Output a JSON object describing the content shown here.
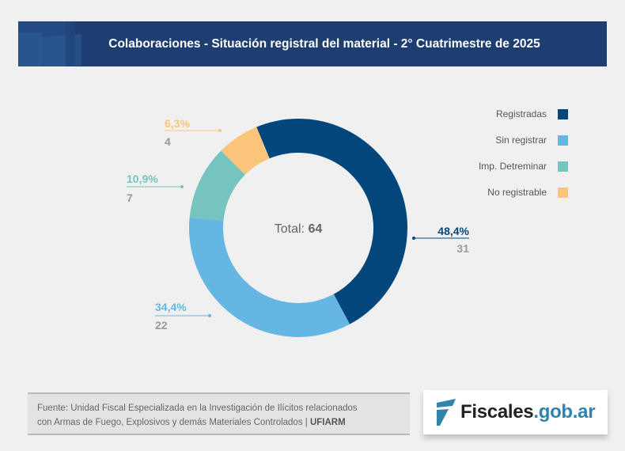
{
  "header": {
    "title": "Colaboraciones - Situación registral del material - 2° Cuatrimestre de 2025"
  },
  "chart_data": {
    "type": "pie",
    "variant": "donut",
    "title": "Colaboraciones - Situación registral del material - 2° Cuatrimestre de 2025",
    "center_label": {
      "prefix": "Total: ",
      "value": "64"
    },
    "total": 64,
    "legend_position": "top-right",
    "slices": [
      {
        "name": "Registradas",
        "value": 31,
        "percent_label": "48,4%",
        "count_label": "31",
        "color": "#02467b"
      },
      {
        "name": "Sin registrar",
        "value": 22,
        "percent_label": "34,4%",
        "count_label": "22",
        "color": "#66b6e3"
      },
      {
        "name": "Imp. Detreminar",
        "value": 7,
        "percent_label": "10,9%",
        "count_label": "7",
        "color": "#76c4c0"
      },
      {
        "name": "No registrable",
        "value": 4,
        "percent_label": "6,3%",
        "count_label": "4",
        "color": "#fbc47b"
      }
    ]
  },
  "footer": {
    "source_line1": "Fuente: Unidad Fiscal Especializada en la Investigación de Ilícitos relacionados",
    "source_line2": "con Armas de Fuego, Explosivos y demás Materiales Controlados | ",
    "source_bold": "UFIARM"
  },
  "logo": {
    "text_main": "Fiscales",
    "text_domain": ".gob.ar",
    "color_main": "#222222",
    "color_domain": "#2e84ad"
  }
}
